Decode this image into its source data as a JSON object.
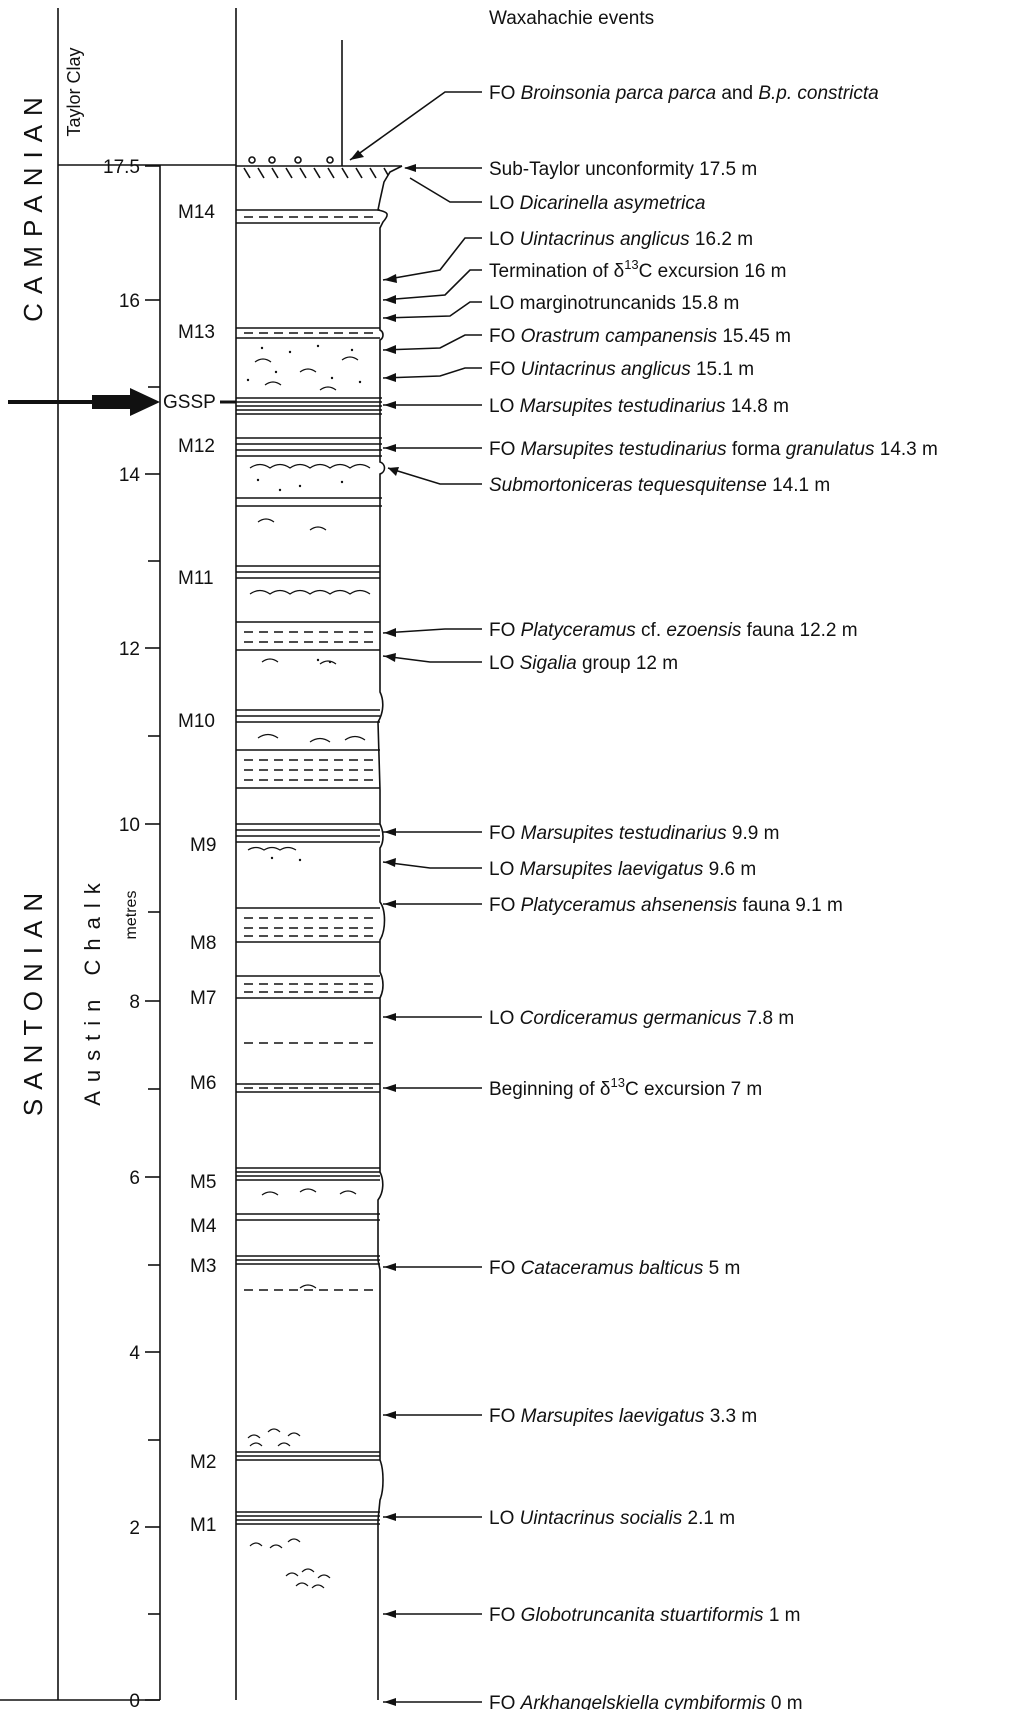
{
  "header": {
    "title": "Waxahachie events"
  },
  "stages": {
    "campanian": "CAMPANIAN",
    "santonian": "SANTONIAN"
  },
  "formations": {
    "taylor": "Taylor Clay",
    "austin_chalk": "Austin Chalk"
  },
  "axis": {
    "unit_label": "metres",
    "ticks": [
      "17.5",
      "16",
      "14",
      "12",
      "10",
      "8",
      "6",
      "4",
      "2",
      "0"
    ]
  },
  "gssp_label": "GSSP",
  "beds": [
    "M14",
    "M13",
    "M12",
    "M11",
    "M10",
    "M9",
    "M8",
    "M7",
    "M6",
    "M5",
    "M4",
    "M3",
    "M2",
    "M1"
  ],
  "events": [
    {
      "pre": "FO ",
      "it": "Broinsonia parca parca",
      "mid": " and ",
      "it2": "B.p. constricta",
      "post": ""
    },
    {
      "pre": "Sub-Taylor unconformity 17.5 m",
      "it": "",
      "mid": "",
      "it2": "",
      "post": ""
    },
    {
      "pre": "LO ",
      "it": "Dicarinella asymetrica",
      "mid": "",
      "it2": "",
      "post": ""
    },
    {
      "pre": "LO ",
      "it": "Uintacrinus anglicus",
      "mid": " 16.2 m",
      "it2": "",
      "post": ""
    },
    {
      "pre": "Termination of δ",
      "sup": "13",
      "post": "C excursion 16 m"
    },
    {
      "pre": "LO marginotruncanids 15.8 m",
      "it": "",
      "mid": "",
      "it2": "",
      "post": ""
    },
    {
      "pre": "FO ",
      "it": "Orastrum campanensis",
      "mid": " 15.45 m",
      "it2": "",
      "post": ""
    },
    {
      "pre": "FO ",
      "it": "Uintacrinus anglicus",
      "mid": " 15.1 m",
      "it2": "",
      "post": ""
    },
    {
      "pre": "LO ",
      "it": "Marsupites testudinarius",
      "mid": " 14.8 m",
      "it2": "",
      "post": ""
    },
    {
      "pre": "FO ",
      "it": "Marsupites testudinarius",
      "mid": " forma ",
      "it2": "granulatus",
      "post": " 14.3 m"
    },
    {
      "pre": "",
      "it": "Submortoniceras tequesquitense",
      "mid": " 14.1 m",
      "it2": "",
      "post": ""
    },
    {
      "pre": "FO ",
      "it": "Platyceramus",
      "mid": " cf. ",
      "it2": "ezoensis",
      "post": " fauna 12.2 m"
    },
    {
      "pre": "LO ",
      "it": "Sigalia",
      "mid": " group 12 m",
      "it2": "",
      "post": ""
    },
    {
      "pre": "FO ",
      "it": "Marsupites testudinarius",
      "mid": " 9.9 m",
      "it2": "",
      "post": ""
    },
    {
      "pre": "LO ",
      "it": "Marsupites laevigatus",
      "mid": " 9.6 m",
      "it2": "",
      "post": ""
    },
    {
      "pre": "FO ",
      "it": "Platyceramus ahsenensis",
      "mid": " fauna 9.1 m",
      "it2": "",
      "post": ""
    },
    {
      "pre": "LO ",
      "it": "Cordiceramus germanicus",
      "mid": " 7.8 m",
      "it2": "",
      "post": ""
    },
    {
      "pre": "Beginning of δ",
      "sup": "13",
      "post": "C excursion 7 m"
    },
    {
      "pre": "FO ",
      "it": "Cataceramus balticus",
      "mid": " 5 m",
      "it2": "",
      "post": ""
    },
    {
      "pre": "FO ",
      "it": "Marsupites laevigatus",
      "mid": " 3.3 m",
      "it2": "",
      "post": ""
    },
    {
      "pre": "LO ",
      "it": "Uintacrinus socialis",
      "mid": " 2.1 m",
      "it2": "",
      "post": ""
    },
    {
      "pre": "FO ",
      "it": "Globotruncanita stuartiformis",
      "mid": " 1 m",
      "it2": "",
      "post": ""
    },
    {
      "pre": "FO ",
      "it": "Arkhangelskiella cymbiformis",
      "mid": " 0 m",
      "it2": "",
      "post": ""
    }
  ]
}
